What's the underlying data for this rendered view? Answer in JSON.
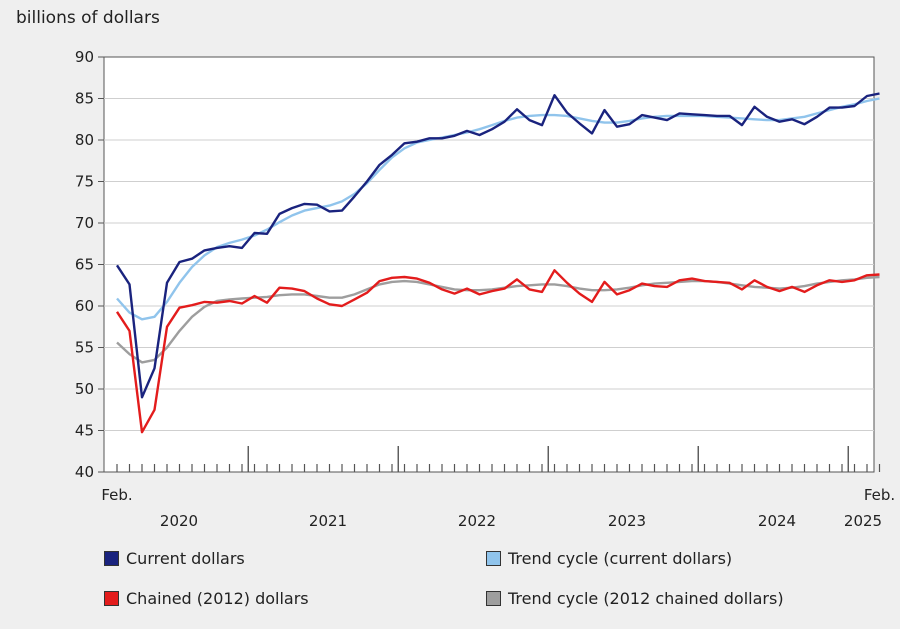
{
  "chart_data": {
    "type": "line",
    "unit_label": "billions of dollars",
    "ylim": [
      40,
      90
    ],
    "y_ticks": [
      "40",
      "45",
      "50",
      "55",
      "60",
      "65",
      "70",
      "75",
      "80",
      "85",
      "90"
    ],
    "x_start_label": "Feb.",
    "x_end_label": "Feb.",
    "year_labels": [
      "2020",
      "2021",
      "2022",
      "2023",
      "2024",
      "2025"
    ],
    "series": [
      {
        "name": "Current dollars",
        "color": "#1a237e",
        "values": [
          64.9,
          62.6,
          49.0,
          52.5,
          62.8,
          65.3,
          65.7,
          66.7,
          67.0,
          67.2,
          67.0,
          68.8,
          68.7,
          71.1,
          71.8,
          72.3,
          72.2,
          71.4,
          71.5,
          73.2,
          75.0,
          77.0,
          78.2,
          79.6,
          79.8,
          80.2,
          80.2,
          80.5,
          81.1,
          80.6,
          81.3,
          82.2,
          83.7,
          82.4,
          81.8,
          85.4,
          83.3,
          82.0,
          80.8,
          83.6,
          81.6,
          81.9,
          83.0,
          82.7,
          82.4,
          83.2,
          83.1,
          83.0,
          82.9,
          82.9,
          81.8,
          84.0,
          82.8,
          82.2,
          82.5,
          81.9,
          82.8,
          83.9,
          83.9,
          84.1,
          85.3,
          85.6
        ]
      },
      {
        "name": "Trend cycle (current dollars)",
        "color": "#90c4ec",
        "values": [
          60.9,
          59.2,
          58.4,
          58.7,
          60.5,
          62.8,
          64.7,
          66.1,
          67.1,
          67.6,
          68.0,
          68.5,
          69.2,
          70.1,
          70.9,
          71.5,
          71.8,
          72.1,
          72.6,
          73.5,
          74.8,
          76.4,
          77.9,
          79.0,
          79.7,
          80.0,
          80.3,
          80.6,
          80.9,
          81.3,
          81.8,
          82.3,
          82.7,
          82.9,
          83.0,
          83.0,
          82.9,
          82.6,
          82.3,
          82.1,
          82.1,
          82.3,
          82.6,
          82.8,
          82.9,
          82.9,
          82.9,
          82.9,
          82.8,
          82.7,
          82.6,
          82.5,
          82.4,
          82.4,
          82.6,
          82.8,
          83.2,
          83.6,
          84.0,
          84.3,
          84.7,
          85.0
        ]
      },
      {
        "name": "Chained (2012) dollars",
        "color": "#e31c1c",
        "values": [
          59.3,
          57.0,
          44.8,
          47.5,
          57.5,
          59.8,
          60.1,
          60.5,
          60.4,
          60.6,
          60.3,
          61.2,
          60.4,
          62.2,
          62.1,
          61.8,
          60.9,
          60.2,
          60.0,
          60.8,
          61.6,
          63.0,
          63.4,
          63.5,
          63.3,
          62.8,
          62.0,
          61.5,
          62.1,
          61.4,
          61.8,
          62.1,
          63.2,
          62.0,
          61.7,
          64.3,
          62.8,
          61.5,
          60.5,
          62.9,
          61.4,
          61.9,
          62.7,
          62.4,
          62.3,
          63.1,
          63.3,
          63.0,
          62.9,
          62.8,
          62.0,
          63.1,
          62.3,
          61.8,
          62.3,
          61.7,
          62.5,
          63.1,
          62.9,
          63.1,
          63.7,
          63.8
        ]
      },
      {
        "name": "Trend cycle (2012 chained dollars)",
        "color": "#9e9e9e",
        "values": [
          55.6,
          54.2,
          53.2,
          53.5,
          55.0,
          57.0,
          58.7,
          59.9,
          60.6,
          60.8,
          60.9,
          61.0,
          61.1,
          61.3,
          61.4,
          61.4,
          61.2,
          61.0,
          61.0,
          61.4,
          62.0,
          62.6,
          62.9,
          63.0,
          62.9,
          62.6,
          62.3,
          62.0,
          61.9,
          61.9,
          62.0,
          62.2,
          62.4,
          62.5,
          62.6,
          62.6,
          62.4,
          62.1,
          61.9,
          61.9,
          62.0,
          62.2,
          62.5,
          62.7,
          62.8,
          62.9,
          63.0,
          63.0,
          62.9,
          62.7,
          62.5,
          62.3,
          62.2,
          62.1,
          62.2,
          62.4,
          62.7,
          62.9,
          63.1,
          63.2,
          63.4,
          63.5
        ]
      }
    ]
  }
}
